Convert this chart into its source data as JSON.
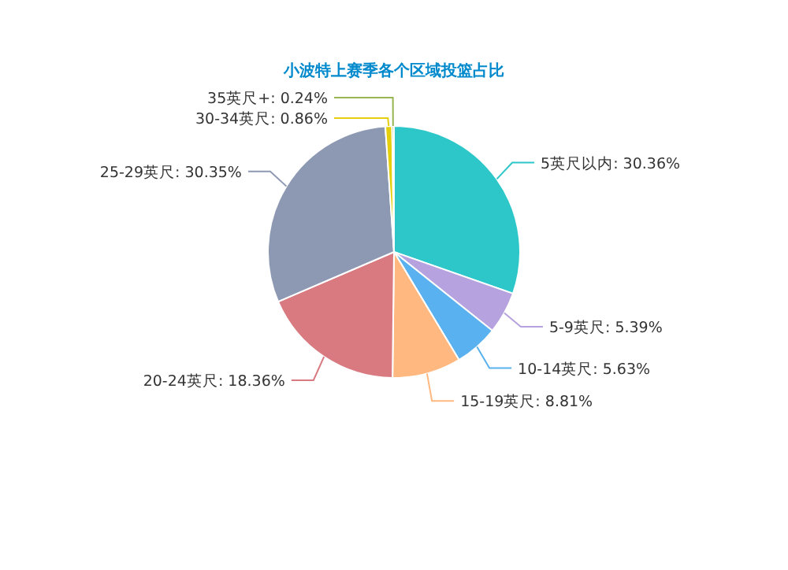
{
  "chart_data": {
    "type": "pie",
    "title": "小波特上赛季各个区域投篮占比",
    "categories": [
      "5英尺以内",
      "5-9英尺",
      "10-14英尺",
      "15-19英尺",
      "20-24英尺",
      "25-29英尺",
      "30-34英尺",
      "35英尺+"
    ],
    "values": [
      30.36,
      5.39,
      5.63,
      8.81,
      18.36,
      30.35,
      0.86,
      0.24
    ],
    "value_labels": [
      "30.36%",
      "5.39%",
      "5.63%",
      "8.81%",
      "18.36%",
      "30.35%",
      "0.86%",
      "0.24%"
    ],
    "colors": [
      "#2ec7c9",
      "#b6a2de",
      "#5ab1ef",
      "#ffb980",
      "#d87a80",
      "#8d98b3",
      "#e5cf0d",
      "#97b552"
    ]
  }
}
